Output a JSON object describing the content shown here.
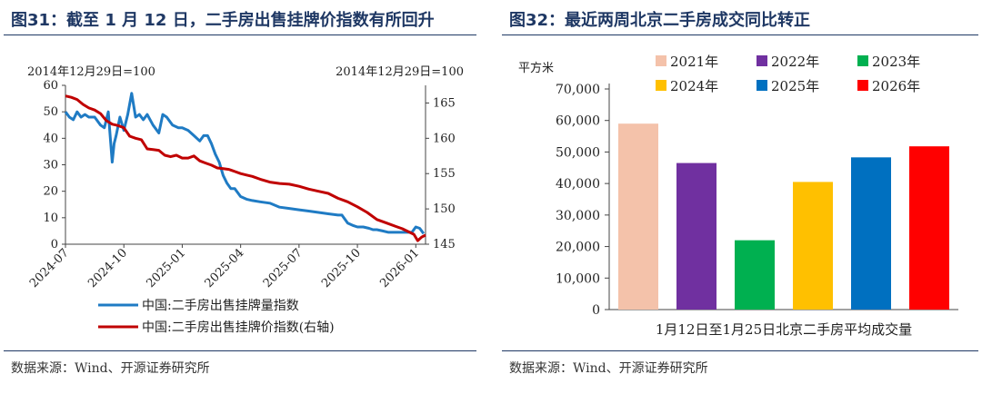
{
  "colors": {
    "title": "#1f3864",
    "blue_line": "#1f7bc4",
    "red_line": "#c00000",
    "bar_2021": "#f4c2aa",
    "bar_2022": "#7030a0",
    "bar_2023": "#00b050",
    "bar_2024": "#ffc000",
    "bar_2025": "#0070c0",
    "bar_2026": "#ff0000"
  },
  "left": {
    "title": "图31：截至 1 月 12 日，二手房出售挂牌价指数有所回升",
    "source": "数据来源：Wind、开源证券研究所"
  },
  "right": {
    "title": "图32：最近两周北京二手房成交同比转正",
    "source": "数据来源：Wind、开源证券研究所"
  },
  "chart_data": [
    {
      "type": "line",
      "title": "",
      "left_axis_note": "2014年12月29日=100",
      "right_axis_note": "2014年12月29日=100",
      "ylim": [
        0,
        60
      ],
      "yticks": [
        "0",
        "10",
        "20",
        "30",
        "40",
        "50",
        "60"
      ],
      "y2lim": [
        145,
        167.5
      ],
      "y2ticks": [
        "145",
        "150",
        "155",
        "160",
        "165"
      ],
      "xlim": [
        0,
        18.5
      ],
      "xticks": [
        {
          "pos": 0,
          "label": "2024-07"
        },
        {
          "pos": 3,
          "label": "2024-10"
        },
        {
          "pos": 6,
          "label": "2025-01"
        },
        {
          "pos": 9,
          "label": "2025-04"
        },
        {
          "pos": 12,
          "label": "2025-07"
        },
        {
          "pos": 15,
          "label": "2025-10"
        },
        {
          "pos": 18,
          "label": "2026-01"
        }
      ],
      "series": [
        {
          "name": "中国:二手房出售挂牌量指数",
          "axis": "left",
          "x": [
            0,
            0.2,
            0.4,
            0.6,
            0.8,
            1.0,
            1.2,
            1.5,
            1.8,
            2.0,
            2.2,
            2.4,
            2.5,
            2.6,
            2.8,
            3.0,
            3.2,
            3.4,
            3.6,
            3.8,
            4.0,
            4.2,
            4.5,
            4.8,
            5.0,
            5.2,
            5.5,
            5.8,
            6.0,
            6.3,
            6.6,
            6.9,
            7.1,
            7.3,
            7.5,
            7.7,
            7.9,
            8.1,
            8.3,
            8.5,
            8.7,
            9.0,
            9.3,
            9.6,
            10.0,
            10.5,
            11.0,
            11.5,
            12.0,
            12.5,
            13.0,
            13.5,
            14.0,
            14.2,
            14.5,
            14.8,
            15.0,
            15.3,
            15.6,
            15.8,
            16.0,
            16.3,
            16.6,
            17.0,
            17.4,
            17.8,
            18.0,
            18.2,
            18.4
          ],
          "values": [
            50,
            48,
            47,
            50,
            48,
            49,
            48,
            48,
            45,
            44,
            50,
            31,
            38,
            41,
            48,
            43,
            49,
            57,
            48,
            49,
            47,
            49,
            45,
            42,
            49,
            48,
            45,
            44,
            44,
            43,
            41,
            39,
            41,
            41,
            38,
            34,
            31,
            26,
            23,
            21,
            21,
            18,
            17,
            16.5,
            16,
            15.5,
            14,
            13.5,
            13,
            12.5,
            12,
            11.5,
            11,
            11,
            8,
            7,
            6.5,
            6.5,
            6,
            5.5,
            5.5,
            5,
            4.5,
            4.5,
            4.5,
            4.5,
            6.5,
            6,
            4
          ]
        },
        {
          "name": "中国:二手房出售挂牌价指数(右轴)",
          "axis": "right",
          "x": [
            0,
            0.3,
            0.6,
            0.9,
            1.2,
            1.5,
            1.8,
            2.1,
            2.4,
            2.7,
            3.0,
            3.3,
            3.6,
            3.9,
            4.2,
            4.5,
            4.8,
            5.1,
            5.4,
            5.7,
            6.0,
            6.3,
            6.6,
            6.9,
            7.2,
            7.5,
            7.8,
            8.1,
            8.4,
            8.7,
            9.0,
            9.3,
            9.6,
            10.0,
            10.5,
            11.0,
            11.5,
            12.0,
            12.5,
            13.0,
            13.5,
            14.0,
            14.5,
            15.0,
            15.5,
            16.0,
            16.5,
            17.0,
            17.3,
            17.6,
            17.9,
            18.1,
            18.3,
            18.5
          ],
          "values": [
            166,
            165.8,
            165.5,
            164.8,
            164.3,
            164,
            163.5,
            162.5,
            162,
            161.8,
            161.5,
            160.3,
            160,
            159.8,
            158.5,
            158.4,
            158.3,
            157.6,
            157.4,
            157.6,
            157.2,
            157.2,
            157.5,
            156.8,
            156.5,
            156.2,
            155.8,
            155.7,
            155.6,
            155.3,
            155,
            154.8,
            154.6,
            154.2,
            153.8,
            153.6,
            153.5,
            153.2,
            152.8,
            152.5,
            152.2,
            151.5,
            151,
            150.3,
            149.5,
            148.5,
            148,
            147.5,
            147.2,
            146.8,
            146.4,
            145.5,
            146,
            146.3
          ]
        }
      ]
    },
    {
      "type": "bar",
      "title": "",
      "ylabel": "平方米",
      "xlabel": "1月12日至1月25日北京二手房平均成交量",
      "ylim": [
        0,
        70000
      ],
      "yticks": [
        "0",
        "10,000",
        "20,000",
        "30,000",
        "40,000",
        "50,000",
        "60,000",
        "70,000"
      ],
      "categories": [
        "2021年",
        "2022年",
        "2023年",
        "2024年",
        "2025年",
        "2026年"
      ],
      "values": [
        59000,
        46500,
        22000,
        40500,
        48300,
        51800
      ]
    }
  ]
}
